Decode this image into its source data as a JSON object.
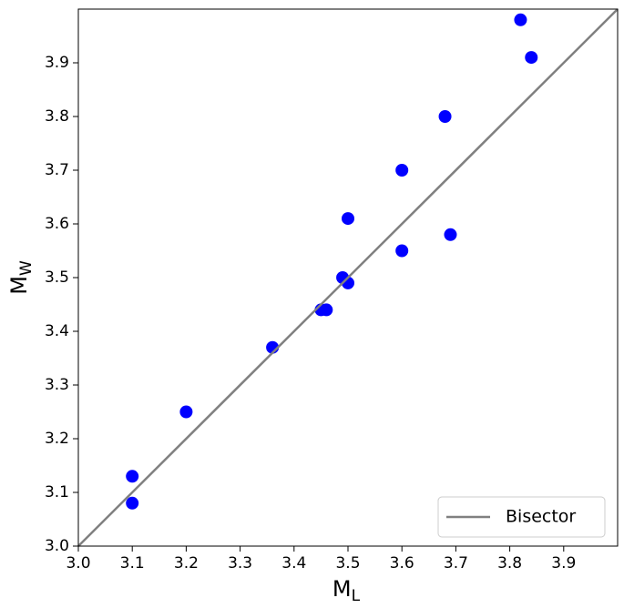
{
  "chart_data": {
    "type": "scatter",
    "xlabel": {
      "text": "M",
      "subscript": "L"
    },
    "ylabel": {
      "text": "M",
      "subscript": "W"
    },
    "xlim": [
      3.0,
      4.0
    ],
    "ylim": [
      3.0,
      4.0
    ],
    "xticks": [
      {
        "value": 3.0,
        "label": "3.0"
      },
      3.1,
      3.2,
      3.3,
      3.4,
      3.5,
      3.6,
      3.7,
      3.8,
      3.9
    ],
    "yticks": [
      {
        "value": 3.0,
        "label": "3.0"
      },
      3.1,
      3.2,
      3.3,
      3.4,
      3.5,
      3.6,
      3.7,
      3.8,
      3.9
    ],
    "legend": "lower right",
    "series": [
      {
        "type": "scatter",
        "color": "#0000ff",
        "x": [
          3.1,
          3.1,
          3.2,
          3.36,
          3.45,
          3.46,
          3.49,
          3.5,
          3.5,
          3.6,
          3.6,
          3.68,
          3.69,
          3.82,
          3.84
        ],
        "values": [
          3.13,
          3.08,
          3.25,
          3.37,
          3.44,
          3.44,
          3.5,
          3.49,
          3.61,
          3.7,
          3.55,
          3.8,
          3.58,
          3.98,
          3.91
        ]
      },
      {
        "type": "line",
        "name": "Bisector",
        "color": "#808080",
        "x": [
          3.0,
          4.0
        ],
        "values": [
          3.0,
          4.0
        ]
      }
    ]
  }
}
